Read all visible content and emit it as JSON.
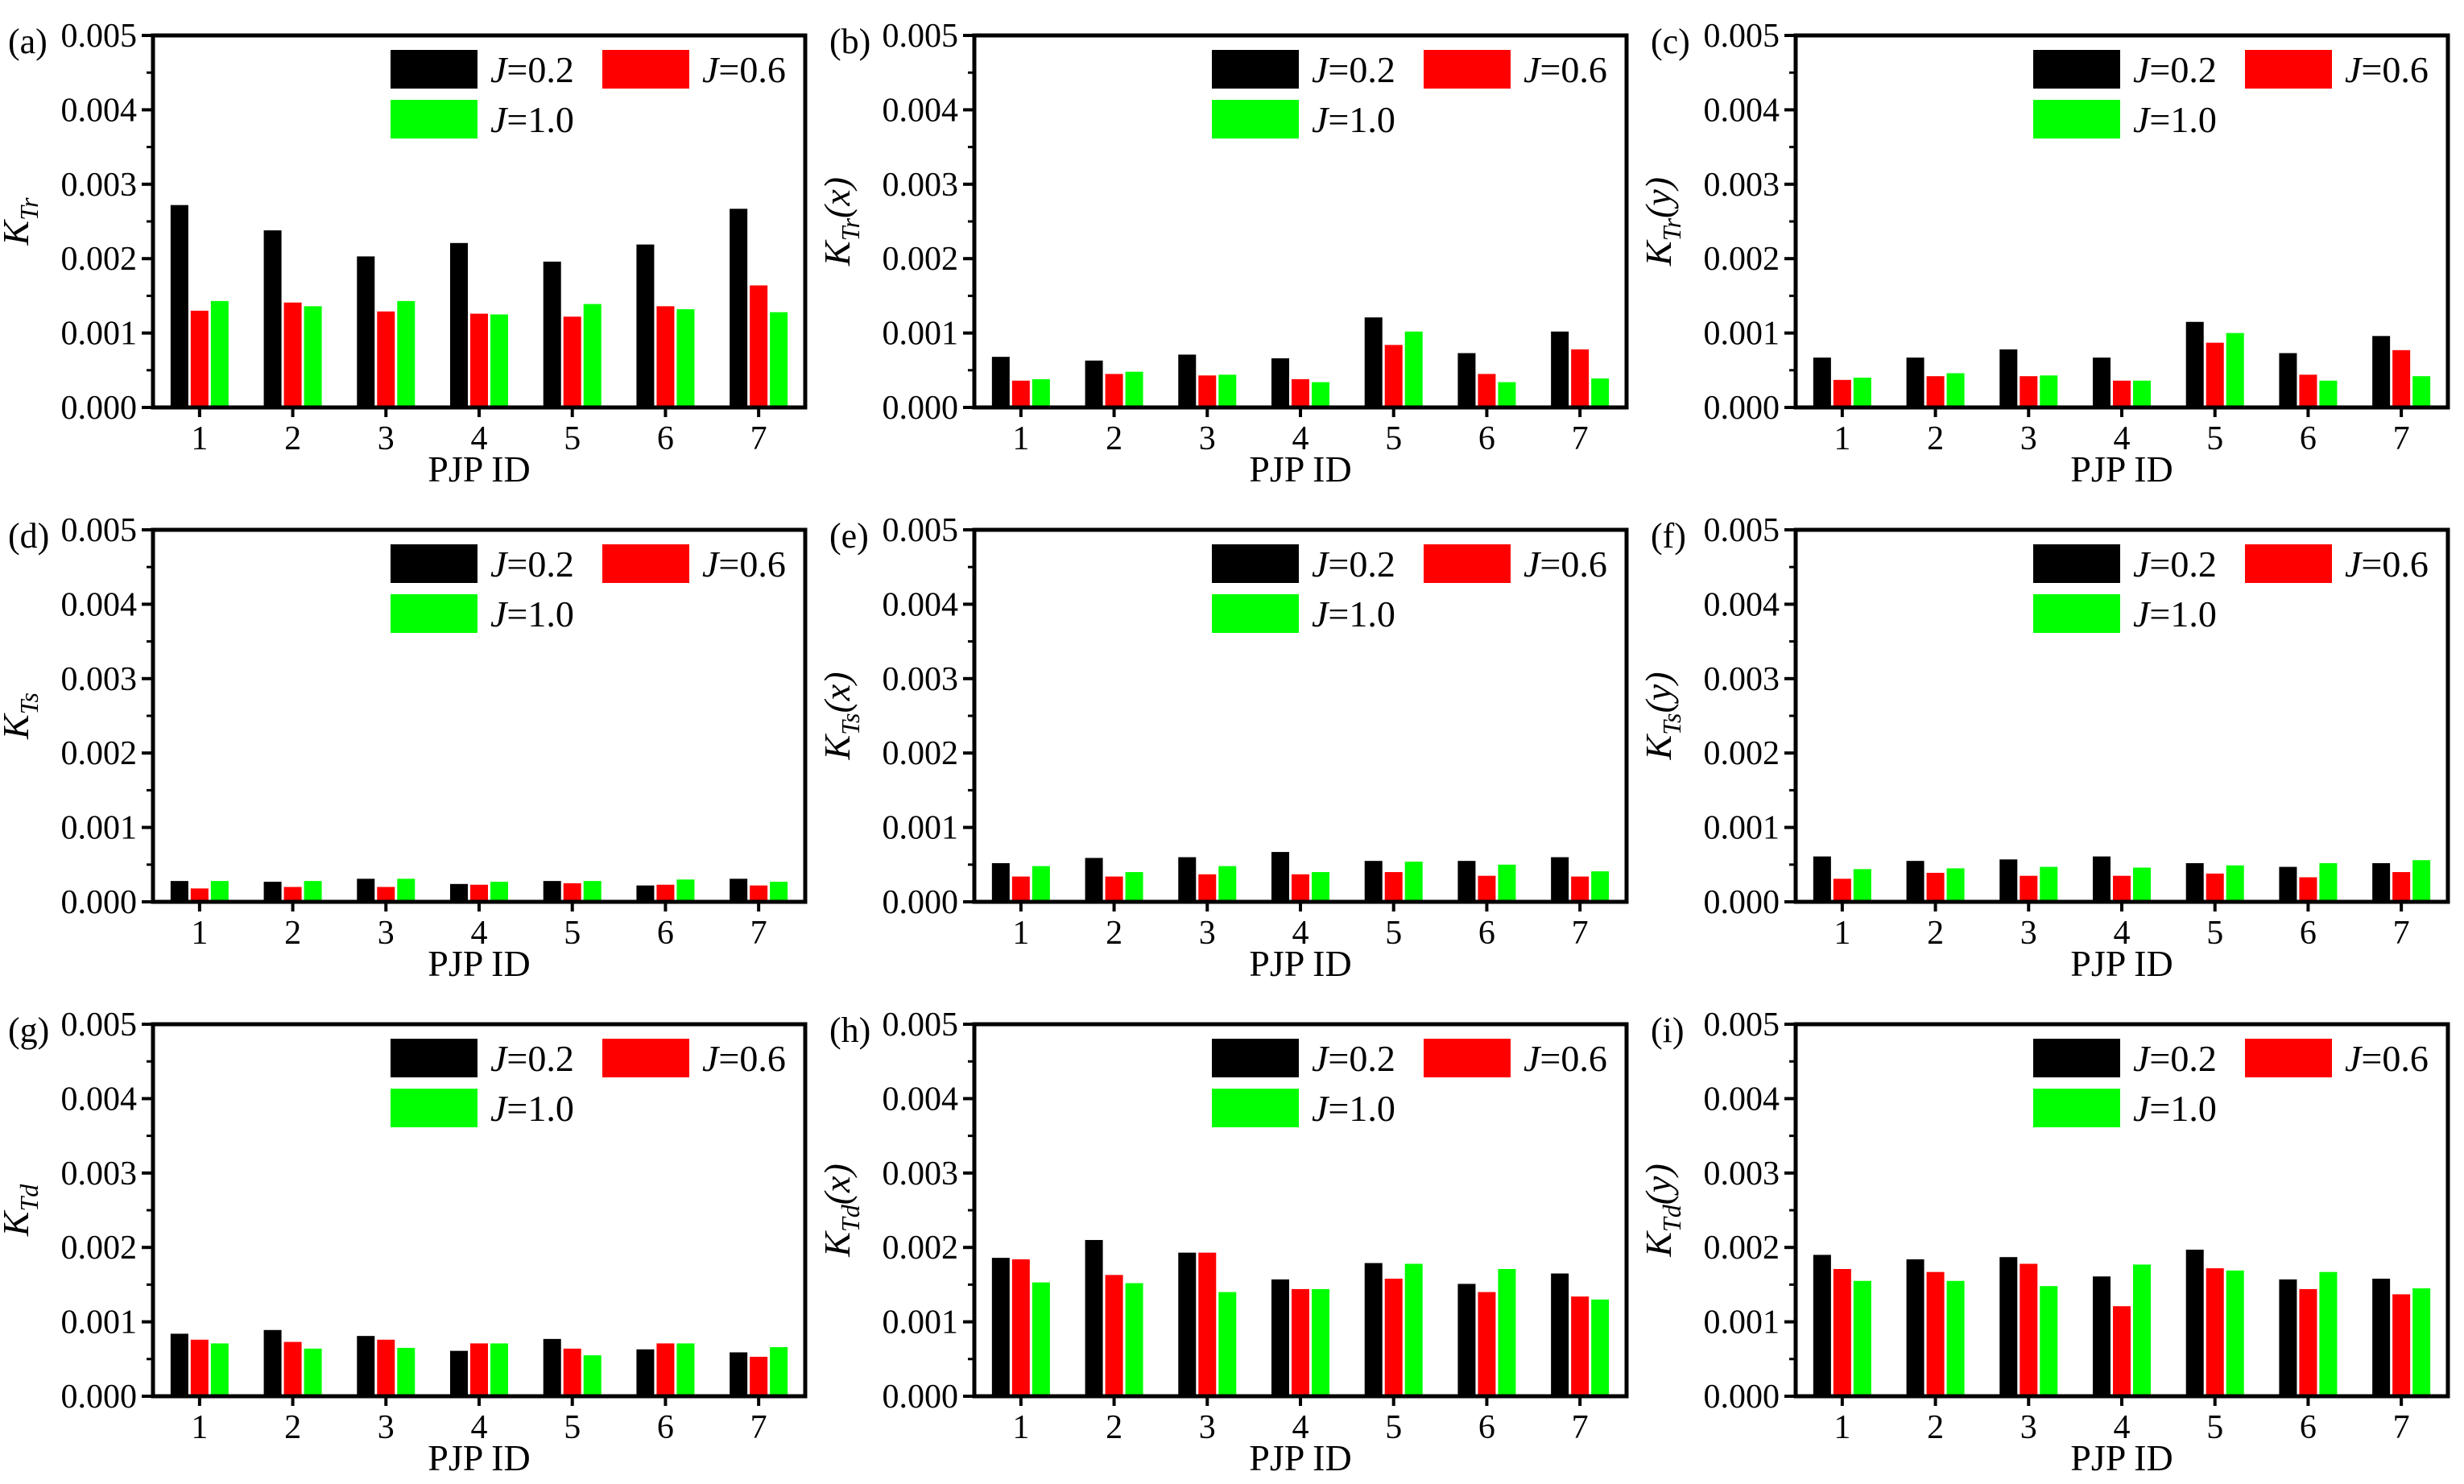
{
  "colors": {
    "J02": "#000000",
    "J06": "#ff0000",
    "J10": "#00ff00"
  },
  "legend": [
    {
      "prefix": "J",
      "rest": "=0.2",
      "key": "J02"
    },
    {
      "prefix": "J",
      "rest": "=0.6",
      "key": "J06"
    },
    {
      "prefix": "J",
      "rest": "=1.0",
      "key": "J10"
    }
  ],
  "chart_data": [
    {
      "panel": "(a)",
      "type": "bar",
      "ylabel_main": "K",
      "ylabel_sub": "Tr",
      "ylabel_arg": "",
      "xlabel": "PJP ID",
      "categories": [
        "1",
        "2",
        "3",
        "4",
        "5",
        "6",
        "7"
      ],
      "ylim": [
        0,
        0.005
      ],
      "yticks": [
        "0.000",
        "0.001",
        "0.002",
        "0.003",
        "0.004",
        "0.005"
      ],
      "series": [
        {
          "name": "J=0.2",
          "values": [
            0.00272,
            0.00238,
            0.00203,
            0.00221,
            0.00196,
            0.00219,
            0.00267
          ]
        },
        {
          "name": "J=0.6",
          "values": [
            0.0013,
            0.00141,
            0.00129,
            0.00126,
            0.00122,
            0.00136,
            0.00164
          ]
        },
        {
          "name": "J=1.0",
          "values": [
            0.00143,
            0.00136,
            0.00143,
            0.00125,
            0.00139,
            0.00132,
            0.00128
          ]
        }
      ]
    },
    {
      "panel": "(b)",
      "type": "bar",
      "ylabel_main": "K",
      "ylabel_sub": "Tr",
      "ylabel_arg": "(x)",
      "xlabel": "PJP ID",
      "categories": [
        "1",
        "2",
        "3",
        "4",
        "5",
        "6",
        "7"
      ],
      "ylim": [
        0,
        0.005
      ],
      "yticks": [
        "0.000",
        "0.001",
        "0.002",
        "0.003",
        "0.004",
        "0.005"
      ],
      "series": [
        {
          "name": "J=0.2",
          "values": [
            0.00068,
            0.00063,
            0.00071,
            0.00066,
            0.00121,
            0.00073,
            0.00102
          ]
        },
        {
          "name": "J=0.6",
          "values": [
            0.00036,
            0.00045,
            0.00043,
            0.00038,
            0.00084,
            0.00045,
            0.00078
          ]
        },
        {
          "name": "J=1.0",
          "values": [
            0.00038,
            0.00048,
            0.00044,
            0.00034,
            0.00102,
            0.00034,
            0.00039
          ]
        }
      ]
    },
    {
      "panel": "(c)",
      "type": "bar",
      "ylabel_main": "K",
      "ylabel_sub": "Tr",
      "ylabel_arg": "(y)",
      "xlabel": "PJP ID",
      "categories": [
        "1",
        "2",
        "3",
        "4",
        "5",
        "6",
        "7"
      ],
      "ylim": [
        0,
        0.005
      ],
      "yticks": [
        "0.000",
        "0.001",
        "0.002",
        "0.003",
        "0.004",
        "0.005"
      ],
      "series": [
        {
          "name": "J=0.2",
          "values": [
            0.00067,
            0.00067,
            0.00078,
            0.00067,
            0.00115,
            0.00073,
            0.00096
          ]
        },
        {
          "name": "J=0.6",
          "values": [
            0.00037,
            0.00042,
            0.00042,
            0.00036,
            0.00087,
            0.00044,
            0.00077
          ]
        },
        {
          "name": "J=1.0",
          "values": [
            0.0004,
            0.00046,
            0.00043,
            0.00036,
            0.001,
            0.00036,
            0.00042
          ]
        }
      ]
    },
    {
      "panel": "(d)",
      "type": "bar",
      "ylabel_main": "K",
      "ylabel_sub": "Ts",
      "ylabel_arg": "",
      "xlabel": "PJP ID",
      "categories": [
        "1",
        "2",
        "3",
        "4",
        "5",
        "6",
        "7"
      ],
      "ylim": [
        0,
        0.005
      ],
      "yticks": [
        "0.000",
        "0.001",
        "0.002",
        "0.003",
        "0.004",
        "0.005"
      ],
      "series": [
        {
          "name": "J=0.2",
          "values": [
            0.00028,
            0.00027,
            0.00031,
            0.00024,
            0.00028,
            0.00022,
            0.00031
          ]
        },
        {
          "name": "J=0.6",
          "values": [
            0.00018,
            0.0002,
            0.0002,
            0.00023,
            0.00025,
            0.00023,
            0.00022
          ]
        },
        {
          "name": "J=1.0",
          "values": [
            0.00028,
            0.00028,
            0.00031,
            0.00027,
            0.00028,
            0.0003,
            0.00027
          ]
        }
      ]
    },
    {
      "panel": "(e)",
      "type": "bar",
      "ylabel_main": "K",
      "ylabel_sub": "Ts",
      "ylabel_arg": "(x)",
      "xlabel": "PJP ID",
      "categories": [
        "1",
        "2",
        "3",
        "4",
        "5",
        "6",
        "7"
      ],
      "ylim": [
        0,
        0.005
      ],
      "yticks": [
        "0.000",
        "0.001",
        "0.002",
        "0.003",
        "0.004",
        "0.005"
      ],
      "series": [
        {
          "name": "J=0.2",
          "values": [
            0.00052,
            0.00059,
            0.0006,
            0.00067,
            0.00055,
            0.00055,
            0.0006
          ]
        },
        {
          "name": "J=0.6",
          "values": [
            0.00034,
            0.00034,
            0.00037,
            0.00037,
            0.0004,
            0.00035,
            0.00034
          ]
        },
        {
          "name": "J=1.0",
          "values": [
            0.00048,
            0.0004,
            0.00048,
            0.0004,
            0.00054,
            0.0005,
            0.00041
          ]
        }
      ]
    },
    {
      "panel": "(f)",
      "type": "bar",
      "ylabel_main": "K",
      "ylabel_sub": "Ts",
      "ylabel_arg": "(y)",
      "xlabel": "PJP ID",
      "categories": [
        "1",
        "2",
        "3",
        "4",
        "5",
        "6",
        "7"
      ],
      "ylim": [
        0,
        0.005
      ],
      "yticks": [
        "0.000",
        "0.001",
        "0.002",
        "0.003",
        "0.004",
        "0.005"
      ],
      "series": [
        {
          "name": "J=0.2",
          "values": [
            0.00061,
            0.00055,
            0.00057,
            0.00061,
            0.00052,
            0.00047,
            0.00052
          ]
        },
        {
          "name": "J=0.6",
          "values": [
            0.00031,
            0.00039,
            0.00035,
            0.00035,
            0.00038,
            0.00033,
            0.0004
          ]
        },
        {
          "name": "J=1.0",
          "values": [
            0.00044,
            0.00045,
            0.00047,
            0.00046,
            0.00049,
            0.00052,
            0.00056
          ]
        }
      ]
    },
    {
      "panel": "(g)",
      "type": "bar",
      "ylabel_main": "K",
      "ylabel_sub": "Td",
      "ylabel_arg": "",
      "xlabel": "PJP ID",
      "categories": [
        "1",
        "2",
        "3",
        "4",
        "5",
        "6",
        "7"
      ],
      "ylim": [
        0,
        0.005
      ],
      "yticks": [
        "0.000",
        "0.001",
        "0.002",
        "0.003",
        "0.004",
        "0.005"
      ],
      "series": [
        {
          "name": "J=0.2",
          "values": [
            0.00084,
            0.00089,
            0.00081,
            0.00061,
            0.00077,
            0.00063,
            0.00059
          ]
        },
        {
          "name": "J=0.6",
          "values": [
            0.00076,
            0.00073,
            0.00076,
            0.00071,
            0.00064,
            0.00071,
            0.00053
          ]
        },
        {
          "name": "J=1.0",
          "values": [
            0.00071,
            0.00064,
            0.00065,
            0.00071,
            0.00055,
            0.00071,
            0.00066
          ]
        }
      ]
    },
    {
      "panel": "(h)",
      "type": "bar",
      "ylabel_main": "K",
      "ylabel_sub": "Td",
      "ylabel_arg": "(x)",
      "xlabel": "PJP ID",
      "categories": [
        "1",
        "2",
        "3",
        "4",
        "5",
        "6",
        "7"
      ],
      "ylim": [
        0,
        0.005
      ],
      "yticks": [
        "0.000",
        "0.001",
        "0.002",
        "0.003",
        "0.004",
        "0.005"
      ],
      "series": [
        {
          "name": "J=0.2",
          "values": [
            0.00186,
            0.0021,
            0.00193,
            0.00157,
            0.00179,
            0.00151,
            0.00165
          ]
        },
        {
          "name": "J=0.6",
          "values": [
            0.00184,
            0.00163,
            0.00193,
            0.00144,
            0.00158,
            0.0014,
            0.00134
          ]
        },
        {
          "name": "J=1.0",
          "values": [
            0.00153,
            0.00152,
            0.0014,
            0.00144,
            0.00178,
            0.00171,
            0.0013
          ]
        }
      ]
    },
    {
      "panel": "(i)",
      "type": "bar",
      "ylabel_main": "K",
      "ylabel_sub": "Td",
      "ylabel_arg": "(y)",
      "xlabel": "PJP ID",
      "categories": [
        "1",
        "2",
        "3",
        "4",
        "5",
        "6",
        "7"
      ],
      "ylim": [
        0,
        0.005
      ],
      "yticks": [
        "0.000",
        "0.001",
        "0.002",
        "0.003",
        "0.004",
        "0.005"
      ],
      "series": [
        {
          "name": "J=0.2",
          "values": [
            0.0019,
            0.00184,
            0.00187,
            0.00161,
            0.00197,
            0.00157,
            0.00158
          ]
        },
        {
          "name": "J=0.6",
          "values": [
            0.00171,
            0.00167,
            0.00178,
            0.00121,
            0.00172,
            0.00144,
            0.00137
          ]
        },
        {
          "name": "J=1.0",
          "values": [
            0.00155,
            0.00155,
            0.00148,
            0.00177,
            0.00169,
            0.00167,
            0.00145
          ]
        }
      ]
    }
  ]
}
